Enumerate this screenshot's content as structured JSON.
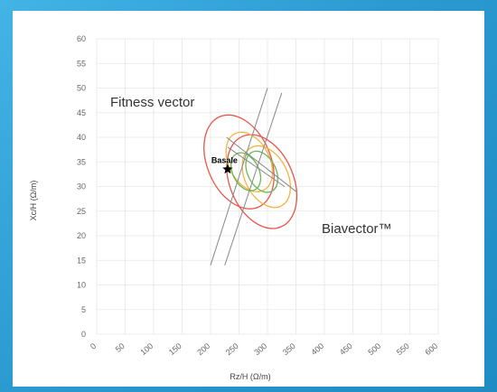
{
  "chart_data": {
    "type": "scatter",
    "xlabel": "Rz/H (Ω/m)",
    "ylabel": "Xc/H (Ω/m)",
    "xlim": [
      0,
      600
    ],
    "ylim": [
      0,
      60
    ],
    "x_ticks": [
      "0",
      "50",
      "100",
      "150",
      "200",
      "250",
      "300",
      "350",
      "400",
      "450",
      "500",
      "550",
      "600"
    ],
    "y_ticks": [
      "0",
      "5",
      "10",
      "15",
      "20",
      "25",
      "30",
      "35",
      "40",
      "45",
      "50",
      "55",
      "60"
    ],
    "grid": true,
    "annotations": {
      "fitness": "Fitness vector",
      "biavector": "Biavector™",
      "basale": "Basale"
    },
    "point": {
      "label": "Basale",
      "x": 230,
      "y": 33.5
    },
    "ellipses": [
      {
        "series": "red-left",
        "cx": 250,
        "cy": 35,
        "rx": 90,
        "ry": 90,
        "angle_deg": -68,
        "color": "#e8564a"
      },
      {
        "series": "red-right",
        "cx": 290,
        "cy": 31,
        "rx": 90,
        "ry": 90,
        "angle_deg": -68,
        "color": "#e8564a"
      },
      {
        "series": "orange-1",
        "cx": 298,
        "cy": 32,
        "rx": 60,
        "ry": 60,
        "angle_deg": -72,
        "color": "#f2b443"
      },
      {
        "series": "orange-2",
        "cx": 268,
        "cy": 35,
        "rx": 58,
        "ry": 58,
        "angle_deg": -72,
        "color": "#f2b443"
      },
      {
        "series": "green-1",
        "cx": 290,
        "cy": 33,
        "rx": 40,
        "ry": 40,
        "angle_deg": -72,
        "color": "#69b85a"
      },
      {
        "series": "green-2",
        "cx": 262,
        "cy": 33,
        "rx": 37,
        "ry": 37,
        "angle_deg": -72,
        "color": "#69b85a"
      }
    ],
    "lines": [
      {
        "x1": 200,
        "y1": 14,
        "x2": 300,
        "y2": 50
      },
      {
        "x1": 225,
        "y1": 14,
        "x2": 325,
        "y2": 49
      },
      {
        "x1": 228,
        "y1": 40,
        "x2": 350,
        "y2": 29
      },
      {
        "x1": 230,
        "y1": 38,
        "x2": 330,
        "y2": 30
      }
    ]
  }
}
